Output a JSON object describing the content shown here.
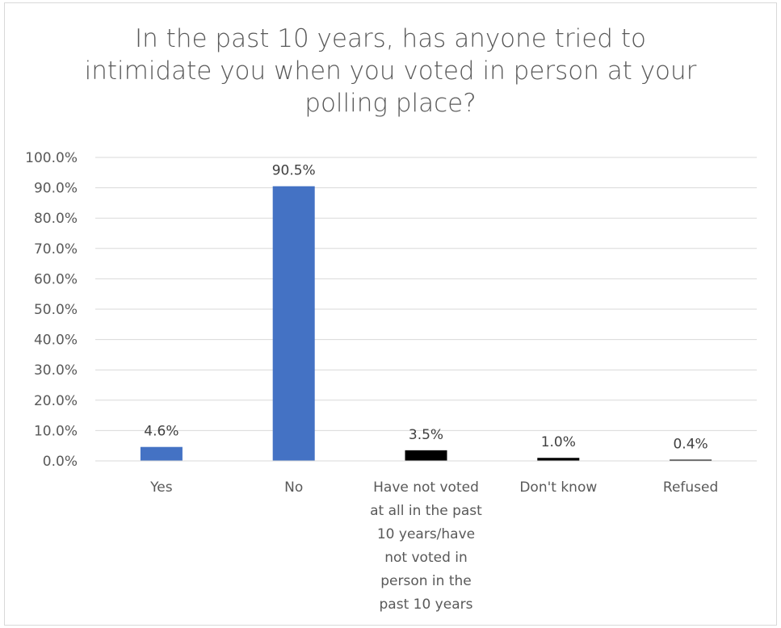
{
  "chart_data": {
    "type": "bar",
    "title": "In the past 10 years, has anyone tried to intimidate you when you voted in person at your polling place?",
    "categories": [
      "Yes",
      "No",
      "Have not voted at all in the past 10 years/have not voted in person in the past 10 years",
      "Don't know",
      "Refused"
    ],
    "category_lines": [
      [
        "Yes"
      ],
      [
        "No"
      ],
      [
        "Have not voted",
        "at all in the past",
        "10 years/have",
        "not voted in",
        "person in the",
        "past 10 years"
      ],
      [
        "Don't know"
      ],
      [
        "Refused"
      ]
    ],
    "values": [
      4.6,
      90.5,
      3.5,
      1.0,
      0.4
    ],
    "data_labels": [
      "4.6%",
      "90.5%",
      "3.5%",
      "1.0%",
      "0.4%"
    ],
    "bar_colors": [
      "#4472c4",
      "#4472c4",
      "#000000",
      "#000000",
      "#000000"
    ],
    "ylim": [
      0,
      100
    ],
    "yticks": [
      "0.0%",
      "10.0%",
      "20.0%",
      "30.0%",
      "40.0%",
      "50.0%",
      "60.0%",
      "70.0%",
      "80.0%",
      "90.0%",
      "100.0%"
    ],
    "grid": true,
    "legend": "none",
    "gridline_color": "#d9d9d9"
  }
}
